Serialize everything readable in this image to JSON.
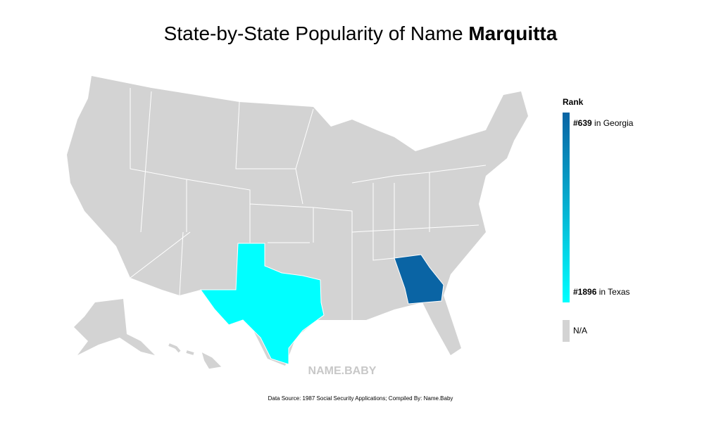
{
  "title": {
    "text": "State-by-State Popularity of Name",
    "name": "Marquitta"
  },
  "legend": {
    "title": "Rank",
    "top": {
      "rank": "#639",
      "state": "in Georgia",
      "color": "#0a64a4"
    },
    "bottom": {
      "rank": "#1896",
      "state": "in Texas",
      "color": "#00ffff"
    },
    "na": {
      "label": "N/A",
      "color": "#d3d3d3"
    }
  },
  "watermark": "NAME.BABY",
  "source": "Data Source: 1987 Social Security Applications; Compiled By: Name.Baby"
}
